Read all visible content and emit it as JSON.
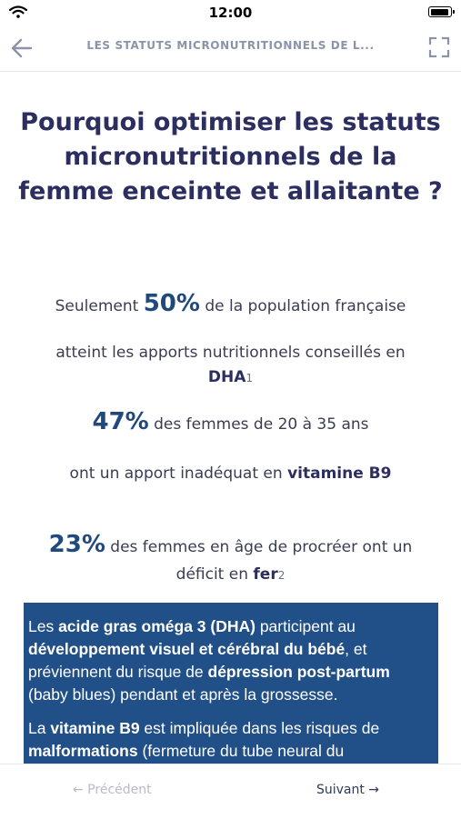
{
  "status_bar": {
    "time": "12:00"
  },
  "header": {
    "title": "LES STATUTS MICRONUTRITIONNELS DE L..."
  },
  "main": {
    "heading": "Pourquoi optimiser les statuts micronutritionnels de la femme enceinte et allaitante ?",
    "stat1": {
      "prefix": "Seulement ",
      "value": "50%",
      "suffix": " de la population française",
      "line2": "atteint les apports nutritionnels conseillés en",
      "strong": "DHA",
      "ref": "1"
    },
    "stat2": {
      "value": "47%",
      "suffix": " des femmes de 20 à 35 ans",
      "line2": "ont un apport inadéquat en ",
      "strong": "vitamine B9"
    },
    "stat3": {
      "value": "23%",
      "suffix": " des femmes en âge de procréer ont un déficit en ",
      "strong": "fer",
      "ref": "2"
    },
    "info_box": {
      "p1": [
        "Les ",
        "acide gras oméga 3 (DHA)",
        " participent au ",
        "développement visuel et cérébral du bébé",
        ", et préviennent du risque de ",
        "dépression post-partum",
        " (baby blues) pendant et après la grossesse."
      ],
      "p2": [
        "La ",
        "vitamine B9",
        " est impliquée dans les risques de ",
        "malformations",
        " (fermeture du tube neural du"
      ]
    }
  },
  "footer": {
    "prev_label": "← Précédent",
    "next_label": "Suivant →"
  }
}
